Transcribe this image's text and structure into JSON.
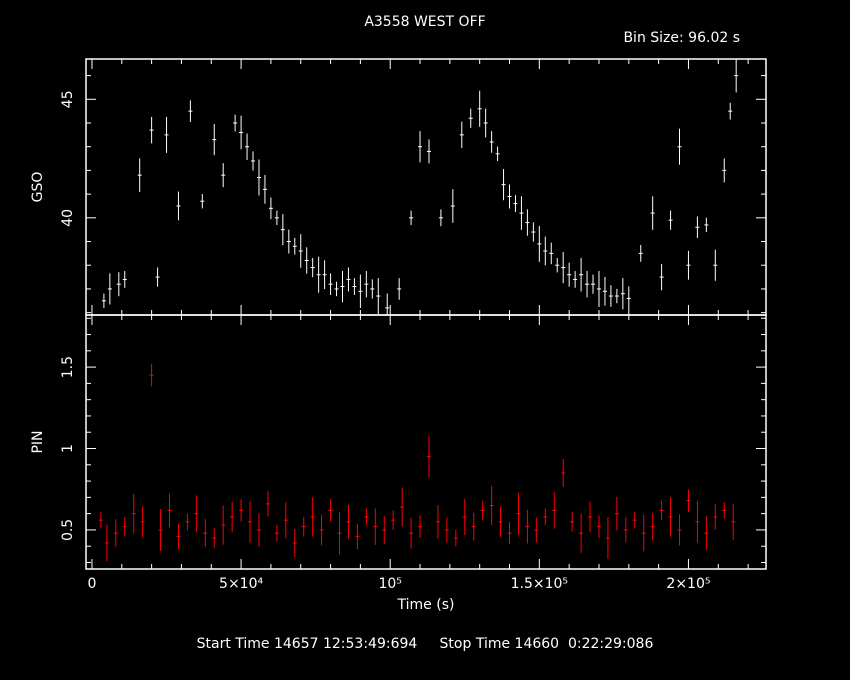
{
  "header": {
    "title": "A3558 WEST OFF",
    "bin_size": "Bin Size: 96.02 s"
  },
  "footer": {
    "times": "Start Time 14657 12:53:49:694     Stop Time 14660  0:22:29:086"
  },
  "colors": {
    "background": "#000000",
    "axes": "#ffffff",
    "gso_series": "#ffffff",
    "pin_series": "#ff0000"
  },
  "chart_data": [
    {
      "type": "scatter",
      "panel": "top",
      "ylabel": "GSO",
      "xlim": [
        -2000,
        226000
      ],
      "ylim": [
        35.9,
        46.7
      ],
      "yticks": [
        {
          "v": 40,
          "label": "40"
        },
        {
          "v": 45,
          "label": "45"
        }
      ],
      "series": [
        {
          "x": [
            4000,
            6000,
            9000,
            11000,
            16000,
            20000,
            22000,
            25000,
            29000,
            33000,
            37000,
            41000,
            44000,
            48000,
            50000,
            52000,
            54000,
            56000,
            58000,
            60000,
            62000,
            64000,
            66000,
            68000,
            70000,
            72000,
            74000,
            76000,
            78000,
            80000,
            82000,
            84000,
            86000,
            88000,
            90000,
            92000,
            94000,
            96000,
            99000,
            103000,
            107000,
            110000,
            113000,
            117000,
            121000,
            124000,
            127000,
            130000,
            132000,
            134000,
            136000,
            138000,
            140000,
            142000,
            144000,
            146000,
            148000,
            150000,
            152000,
            154000,
            156000,
            158000,
            160000,
            162000,
            164000,
            166000,
            168000,
            170000,
            172000,
            174000,
            176000,
            178000,
            180000,
            184000,
            188000,
            191000,
            194000,
            197000,
            200000,
            203000,
            206000,
            209000,
            212000,
            214000,
            216000
          ],
          "y": [
            36.5,
            37.0,
            37.2,
            37.4,
            41.8,
            43.7,
            37.5,
            43.5,
            40.5,
            44.5,
            40.7,
            43.3,
            41.8,
            44.0,
            43.6,
            43.0,
            42.4,
            41.7,
            41.2,
            40.4,
            40.0,
            39.5,
            39.0,
            38.8,
            38.6,
            38.2,
            37.9,
            37.6,
            37.6,
            37.2,
            37.0,
            37.1,
            37.4,
            37.1,
            36.9,
            37.2,
            37.0,
            36.7,
            36.2,
            37.0,
            40.0,
            43.0,
            42.8,
            40.0,
            40.5,
            43.5,
            44.2,
            44.6,
            44.0,
            43.2,
            42.7,
            41.4,
            40.9,
            40.6,
            40.2,
            39.8,
            39.4,
            38.9,
            38.6,
            38.5,
            38.0,
            37.9,
            37.6,
            37.4,
            37.6,
            37.2,
            37.2,
            37.0,
            36.9,
            36.7,
            36.7,
            36.8,
            36.6,
            38.5,
            40.2,
            37.5,
            39.9,
            43.0,
            38.0,
            39.6,
            39.7,
            38.0,
            42.0,
            44.5,
            46.0
          ]
        }
      ]
    },
    {
      "type": "scatter",
      "panel": "bottom",
      "ylabel": "PIN",
      "xlabel": "Time (s)",
      "xlim": [
        -2000,
        226000
      ],
      "ylim": [
        0.26,
        1.82
      ],
      "yticks": [
        {
          "v": 0.5,
          "label": "0.5"
        },
        {
          "v": 1,
          "label": "1"
        },
        {
          "v": 1.5,
          "label": "1.5"
        }
      ],
      "xticks": [
        {
          "v": 0,
          "label": "0"
        },
        {
          "v": 50000,
          "label": "5×10⁴"
        },
        {
          "v": 100000,
          "label": "10⁵"
        },
        {
          "v": 150000,
          "label": "1.5×10⁵"
        },
        {
          "v": 200000,
          "label": "2×10⁵"
        }
      ],
      "series": [
        {
          "x": [
            3000,
            5000,
            8000,
            11000,
            14000,
            17000,
            20000,
            23000,
            26000,
            29000,
            32000,
            35000,
            38000,
            41000,
            44000,
            47000,
            50000,
            53000,
            56000,
            59000,
            62000,
            65000,
            68000,
            71000,
            74000,
            77000,
            80000,
            83000,
            86000,
            89000,
            92000,
            95000,
            98000,
            101000,
            104000,
            107000,
            110000,
            113000,
            116000,
            119000,
            122000,
            125000,
            128000,
            131000,
            134000,
            137000,
            140000,
            143000,
            146000,
            149000,
            152000,
            155000,
            158000,
            161000,
            164000,
            167000,
            170000,
            173000,
            176000,
            179000,
            182000,
            185000,
            188000,
            191000,
            194000,
            197000,
            200000,
            203000,
            206000,
            209000,
            212000,
            215000
          ],
          "y": [
            0.56,
            0.42,
            0.48,
            0.52,
            0.6,
            0.55,
            1.45,
            0.5,
            0.62,
            0.46,
            0.55,
            0.6,
            0.48,
            0.45,
            0.53,
            0.58,
            0.62,
            0.55,
            0.5,
            0.66,
            0.48,
            0.56,
            0.42,
            0.52,
            0.58,
            0.5,
            0.62,
            0.48,
            0.55,
            0.46,
            0.58,
            0.52,
            0.5,
            0.56,
            0.64,
            0.48,
            0.52,
            0.95,
            0.55,
            0.5,
            0.45,
            0.58,
            0.52,
            0.62,
            0.65,
            0.55,
            0.48,
            0.6,
            0.52,
            0.5,
            0.58,
            0.62,
            0.85,
            0.55,
            0.48,
            0.58,
            0.52,
            0.45,
            0.6,
            0.5,
            0.56,
            0.48,
            0.52,
            0.62,
            0.58,
            0.5,
            0.68,
            0.55,
            0.48,
            0.58,
            0.62,
            0.55
          ]
        }
      ]
    }
  ]
}
